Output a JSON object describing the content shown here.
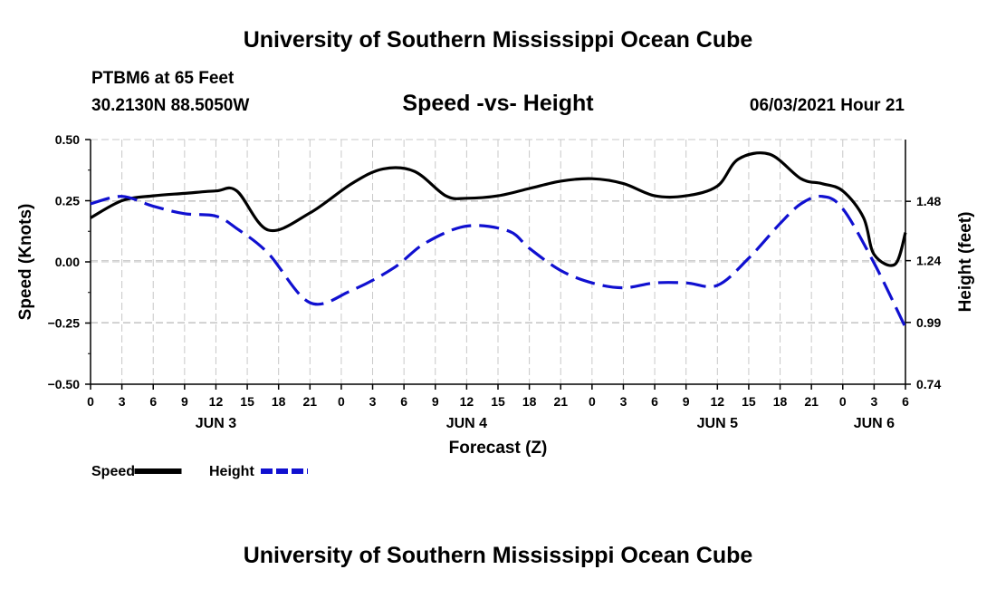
{
  "header": {
    "title": "University of Southern Mississippi Ocean Cube",
    "station": "PTBM6 at 65 Feet",
    "coords": "30.2130N  88.5050W",
    "subtitle": "Speed -vs- Height",
    "datetime": "06/03/2021 Hour 21"
  },
  "footer": {
    "title": "University of Southern Mississippi Ocean Cube"
  },
  "chart_data": {
    "type": "line",
    "title": "Speed -vs- Height",
    "xlabel": "Forecast (Z)",
    "ylabel": "Speed (Knots)",
    "y2label": "Height (feet)",
    "x_range": [
      0,
      78
    ],
    "ylim": [
      -0.5,
      0.5
    ],
    "y2lim": [
      0.74,
      1.73
    ],
    "yticks": [
      -0.5,
      -0.25,
      0.0,
      0.25,
      0.5
    ],
    "ytick_labels": [
      "−0.50",
      "−0.25",
      "0.00",
      "0.25",
      "0.50"
    ],
    "y2ticks": [
      0.74,
      0.99,
      1.24,
      1.48
    ],
    "y2tick_labels": [
      "0.74",
      "0.99",
      "1.24",
      "1.48"
    ],
    "xticks": [
      0,
      3,
      6,
      9,
      12,
      15,
      18,
      21,
      24,
      27,
      30,
      33,
      36,
      39,
      42,
      45,
      48,
      51,
      54,
      57,
      60,
      63,
      66,
      69,
      72,
      75,
      78
    ],
    "xtick_labels": [
      "0",
      "3",
      "6",
      "9",
      "12",
      "15",
      "18",
      "21",
      "0",
      "3",
      "6",
      "9",
      "12",
      "15",
      "18",
      "21",
      "0",
      "3",
      "6",
      "9",
      "12",
      "15",
      "18",
      "21",
      "0",
      "3",
      "6"
    ],
    "day_labels": [
      {
        "x": 12,
        "label": "JUN 3"
      },
      {
        "x": 36,
        "label": "JUN 4"
      },
      {
        "x": 60,
        "label": "JUN 5"
      },
      {
        "x": 75,
        "label": "JUN 6"
      }
    ],
    "grid": true,
    "legend": [
      {
        "name": "Speed",
        "color": "#000000",
        "style": "solid"
      },
      {
        "name": "Height",
        "color": "#1010d0",
        "style": "dashed"
      }
    ],
    "series": [
      {
        "name": "Speed",
        "axis": "left",
        "color": "#000000",
        "style": "solid",
        "x": [
          0,
          3,
          6,
          9,
          12,
          14,
          17,
          21,
          25,
          28,
          31,
          34,
          36,
          39,
          42,
          45,
          48,
          51,
          54,
          57,
          60,
          62,
          65,
          68,
          70,
          72,
          74,
          75,
          77,
          78
        ],
        "values": [
          0.18,
          0.25,
          0.27,
          0.28,
          0.29,
          0.29,
          0.13,
          0.2,
          0.32,
          0.38,
          0.37,
          0.27,
          0.26,
          0.27,
          0.3,
          0.33,
          0.34,
          0.32,
          0.27,
          0.27,
          0.31,
          0.42,
          0.44,
          0.34,
          0.32,
          0.29,
          0.18,
          0.03,
          -0.01,
          0.12
        ]
      },
      {
        "name": "Height",
        "axis": "right",
        "color": "#1010d0",
        "style": "dashed",
        "x": [
          0,
          3,
          6,
          9,
          12,
          14,
          17,
          21,
          25,
          29,
          32,
          36,
          40,
          42,
          45,
          48,
          51,
          54,
          57,
          60,
          63,
          66,
          68,
          70,
          72,
          75,
          78
        ],
        "values": [
          1.47,
          1.5,
          1.46,
          1.43,
          1.42,
          1.37,
          1.27,
          1.07,
          1.12,
          1.21,
          1.31,
          1.38,
          1.36,
          1.29,
          1.2,
          1.15,
          1.13,
          1.15,
          1.15,
          1.14,
          1.25,
          1.39,
          1.47,
          1.5,
          1.45,
          1.23,
          0.97
        ]
      }
    ]
  }
}
